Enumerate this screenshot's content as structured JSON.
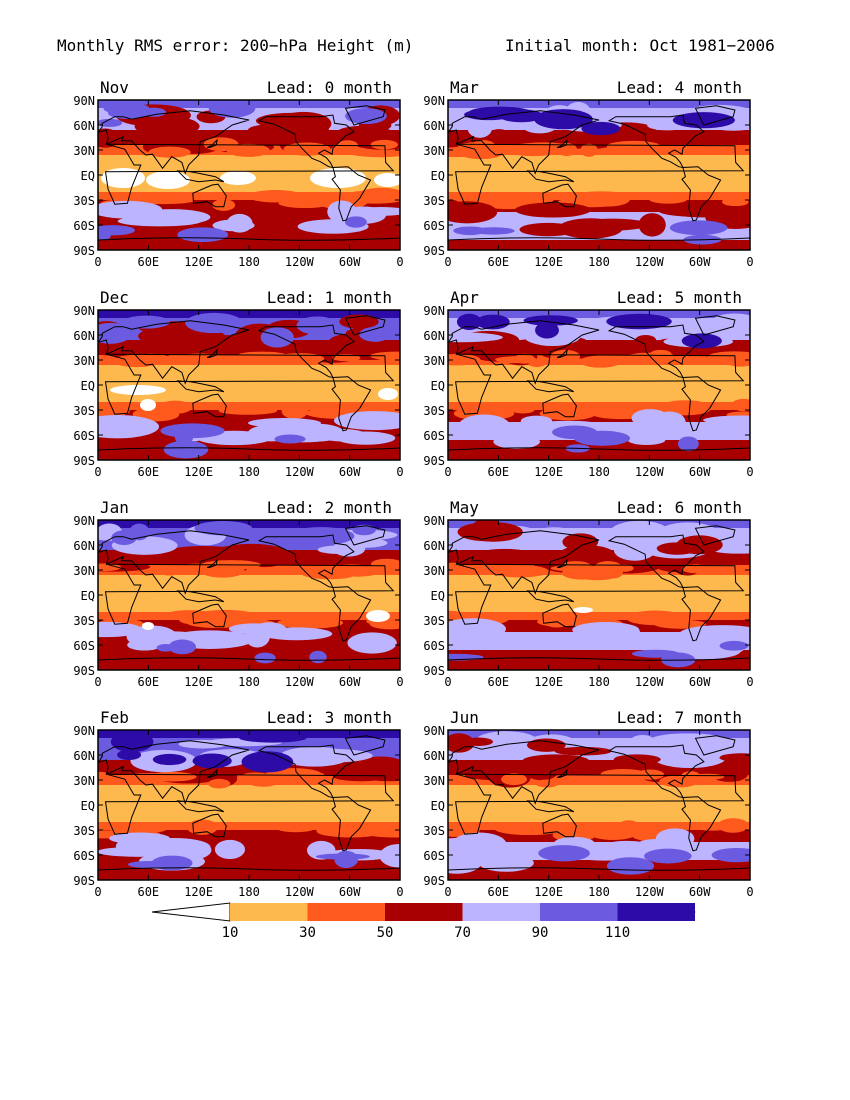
{
  "figure": {
    "title_left": "Monthly RMS error: 200−hPa Height (m)",
    "title_right": "Initial month: Oct 1981−2006"
  },
  "axes": {
    "lat_labels": [
      "90N",
      "60N",
      "30N",
      "EQ",
      "30S",
      "60S",
      "90S"
    ],
    "lon_labels": [
      "0",
      "60E",
      "120E",
      "180",
      "120W",
      "60W",
      "0"
    ]
  },
  "panels": [
    {
      "month": "Nov",
      "lead": "Lead: 0 month"
    },
    {
      "month": "Mar",
      "lead": "Lead: 4 month"
    },
    {
      "month": "Dec",
      "lead": "Lead: 1 month"
    },
    {
      "month": "Apr",
      "lead": "Lead: 5 month"
    },
    {
      "month": "Jan",
      "lead": "Lead: 2 month"
    },
    {
      "month": "May",
      "lead": "Lead: 6 month"
    },
    {
      "month": "Feb",
      "lead": "Lead: 3 month"
    },
    {
      "month": "Jun",
      "lead": "Lead: 7 month"
    }
  ],
  "colorbar": {
    "labels": [
      "10",
      "30",
      "50",
      "70",
      "90",
      "110"
    ],
    "colors": [
      "#ffffff",
      "#fdb94e",
      "#fe5a1d",
      "#a80000",
      "#bcb4ff",
      "#6b5be0",
      "#2d0ba6"
    ]
  }
}
